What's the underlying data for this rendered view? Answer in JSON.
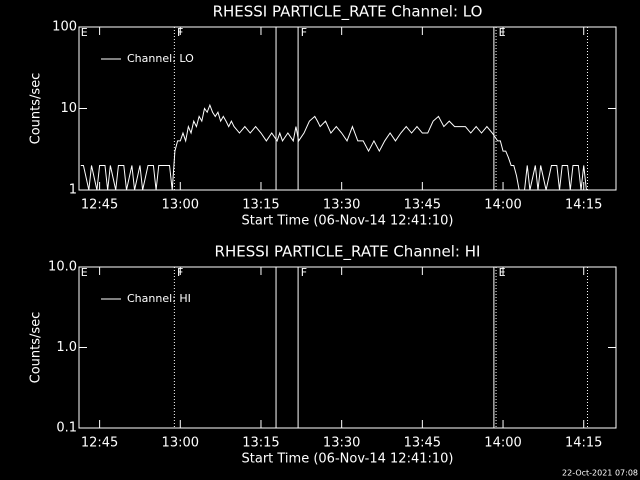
{
  "chart_data": [
    {
      "type": "line",
      "title": "RHESSI PARTICLE_RATE Channel: LO",
      "y_label": "Counts/sec",
      "x_label": "Start Time (06-Nov-14 12:41:10)",
      "log_y": true,
      "ylim": [
        1,
        100
      ],
      "yticks": [
        1,
        10,
        100
      ],
      "xlim": [
        761.17,
        861
      ],
      "xticks": [
        {
          "value": 765,
          "label": "12:45"
        },
        {
          "value": 780,
          "label": "13:00"
        },
        {
          "value": 795,
          "label": "13:15"
        },
        {
          "value": 810,
          "label": "13:30"
        },
        {
          "value": 825,
          "label": "13:45"
        },
        {
          "value": 840,
          "label": "14:00"
        },
        {
          "value": 855,
          "label": "14:15"
        }
      ],
      "vlines": [
        {
          "x": 778.9,
          "style": "dotted"
        },
        {
          "x": 797.8,
          "style": "solid"
        },
        {
          "x": 801.9,
          "style": "solid"
        },
        {
          "x": 838.3,
          "style": "solid"
        },
        {
          "x": 838.7,
          "style": "dotted"
        },
        {
          "x": 855.7,
          "style": "dotted"
        }
      ],
      "annotations": [
        {
          "x": 761.3,
          "text": "E"
        },
        {
          "x": 779.2,
          "text": "F"
        },
        {
          "x": 802.2,
          "text": "F"
        },
        {
          "x": 839,
          "text": "E"
        }
      ],
      "x": [
        761.5,
        762,
        763,
        763.5,
        764.5,
        765,
        766,
        766.5,
        767,
        768,
        768.5,
        769.5,
        770,
        771,
        771.5,
        772.5,
        773,
        774,
        775,
        775.5,
        776,
        777,
        778,
        778.5,
        779,
        779.5,
        780,
        780.5,
        781,
        781.5,
        782,
        782.5,
        783,
        783.5,
        784,
        784.5,
        785,
        785.5,
        786,
        786.5,
        787,
        787.5,
        788,
        788.5,
        789,
        789.5,
        790,
        791,
        792,
        793,
        794,
        795,
        796,
        797,
        798,
        798.5,
        799,
        800,
        801,
        801.5,
        802,
        803,
        804,
        805,
        805.5,
        806,
        807,
        808,
        809,
        810,
        811,
        812,
        813,
        814,
        815,
        816,
        817,
        818,
        819,
        820,
        821,
        822,
        823,
        824,
        825,
        826,
        827,
        828,
        829,
        830,
        831,
        832,
        833,
        834,
        835,
        836,
        837,
        838,
        839,
        839.5,
        840,
        840.5,
        841,
        841.5,
        842,
        842.5,
        843,
        844,
        844.5,
        845,
        846,
        846.5,
        847,
        848,
        849,
        850,
        850.5,
        851,
        852,
        852.5,
        853,
        854,
        854.5,
        855,
        855.5
      ],
      "series": [
        {
          "name": "Channel: LO",
          "color": "#ffffff",
          "values": [
            2,
            2,
            1,
            2,
            1,
            2,
            2,
            1,
            2,
            1,
            2,
            2,
            1,
            2,
            1,
            2,
            1,
            2,
            2,
            1,
            2,
            2,
            2,
            1,
            3,
            4,
            4,
            5,
            4,
            6,
            5,
            7,
            6,
            8,
            7,
            10,
            9,
            11,
            9,
            8,
            9,
            7,
            8,
            7,
            6,
            7,
            6,
            5,
            6,
            5,
            6,
            5,
            4,
            5,
            4,
            5,
            4,
            5,
            4,
            6,
            4,
            5,
            7,
            8,
            7,
            6,
            7,
            5,
            6,
            5,
            4,
            6,
            4,
            4,
            3,
            4,
            3,
            4,
            5,
            4,
            5,
            6,
            5,
            6,
            5,
            5,
            7,
            8,
            6,
            7,
            6,
            6,
            6,
            5,
            6,
            5,
            6,
            5,
            4,
            4,
            3,
            3,
            2.5,
            2,
            2,
            1.5,
            1,
            1,
            2,
            1,
            2,
            1,
            2,
            1,
            2,
            2,
            1,
            2,
            2,
            1,
            2,
            2,
            1,
            2,
            1
          ]
        }
      ]
    },
    {
      "type": "line",
      "title": "RHESSI PARTICLE_RATE Channel: HI",
      "y_label": "Counts/sec",
      "x_label": "Start Time (06-Nov-14 12:41:10)",
      "log_y": true,
      "ylim": [
        0.1,
        10
      ],
      "yticks": [
        {
          "value": 0.1,
          "label": "0.1"
        },
        {
          "value": 1,
          "label": "1.0"
        },
        {
          "value": 10,
          "label": "10.0"
        }
      ],
      "xlim": [
        761.17,
        861
      ],
      "xticks": [
        {
          "value": 765,
          "label": "12:45"
        },
        {
          "value": 780,
          "label": "13:00"
        },
        {
          "value": 795,
          "label": "13:15"
        },
        {
          "value": 810,
          "label": "13:30"
        },
        {
          "value": 825,
          "label": "13:45"
        },
        {
          "value": 840,
          "label": "14:00"
        },
        {
          "value": 855,
          "label": "14:15"
        }
      ],
      "vlines": [
        {
          "x": 778.9,
          "style": "dotted"
        },
        {
          "x": 797.8,
          "style": "solid"
        },
        {
          "x": 801.9,
          "style": "solid"
        },
        {
          "x": 838.3,
          "style": "solid"
        },
        {
          "x": 838.7,
          "style": "dotted"
        },
        {
          "x": 855.7,
          "style": "dotted"
        }
      ],
      "annotations": [
        {
          "x": 761.3,
          "text": "E"
        },
        {
          "x": 779.2,
          "text": "F"
        },
        {
          "x": 802.2,
          "text": "F"
        },
        {
          "x": 839,
          "text": "E"
        }
      ],
      "series": [
        {
          "name": "Channel: HI",
          "color": "#ffffff"
        }
      ]
    }
  ],
  "footer": "22-Oct-2021 07:08"
}
